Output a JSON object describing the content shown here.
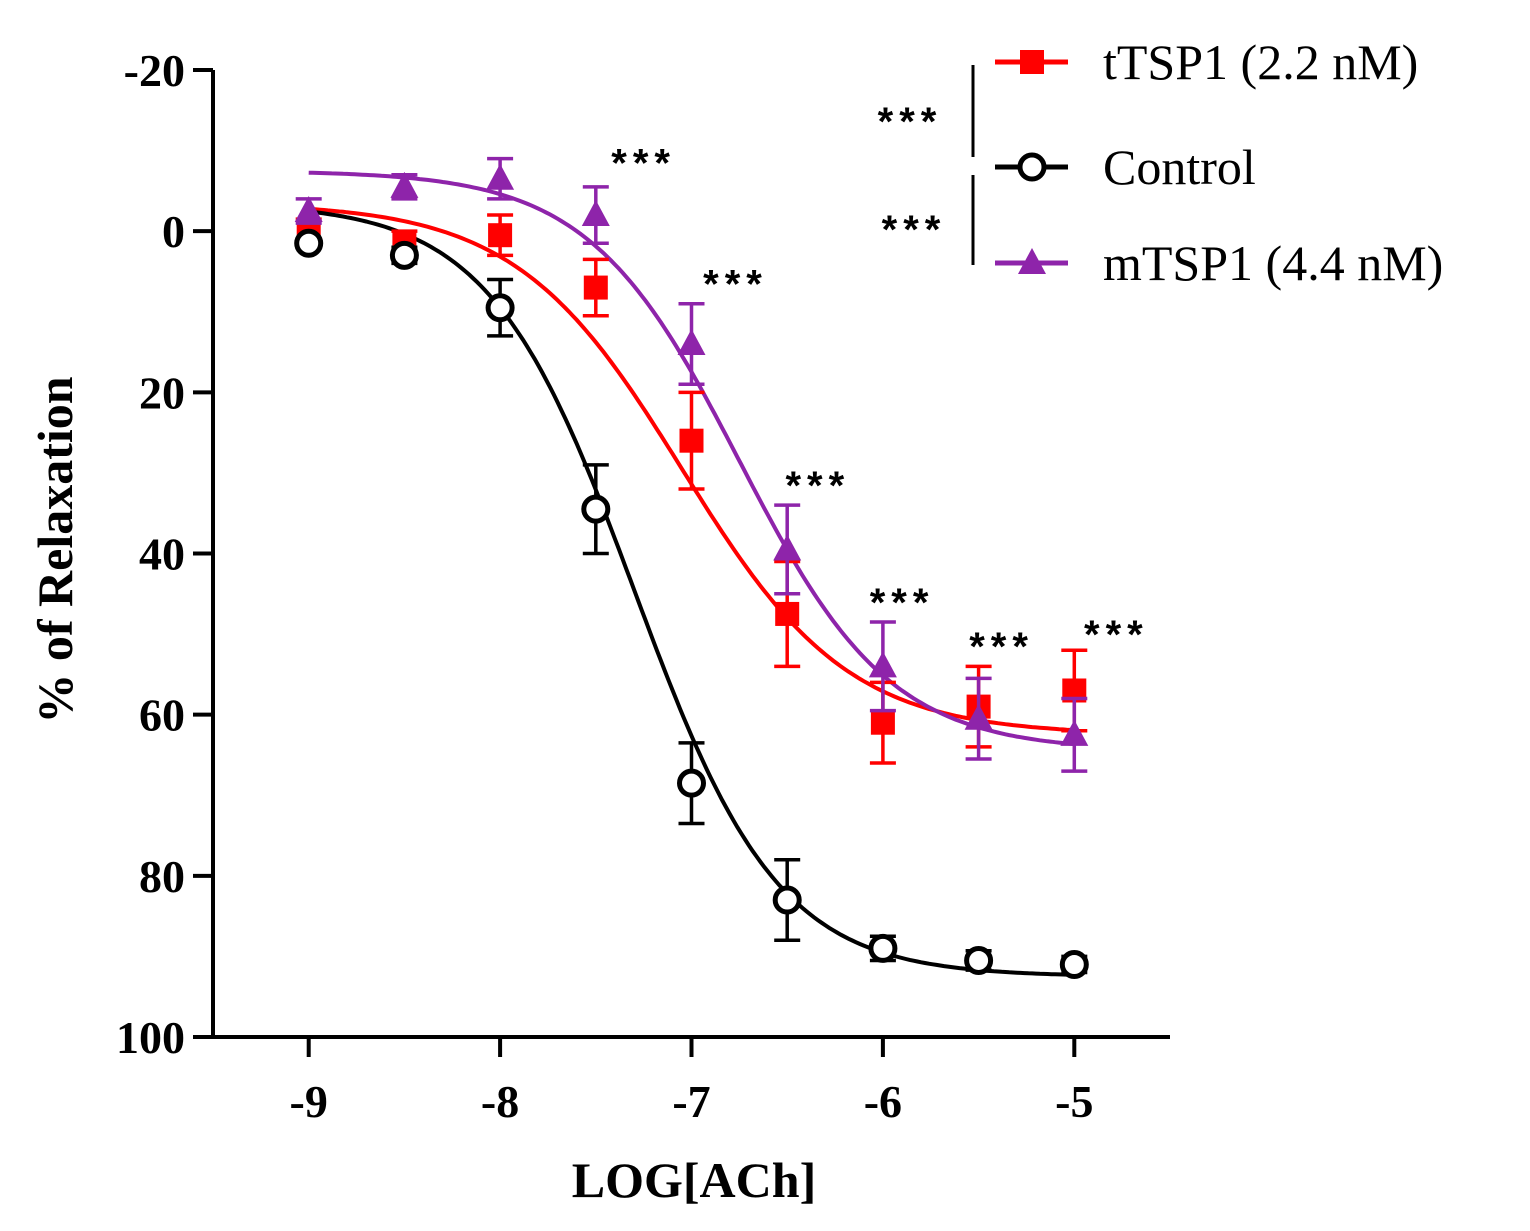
{
  "chart_data": {
    "type": "line",
    "title": "",
    "xlabel": "LOG[ACh]",
    "ylabel": "% of Relaxation",
    "xlim": [
      -9.5,
      -4.5
    ],
    "ylim": [
      100,
      -20
    ],
    "y_inverted": true,
    "x_ticks": [
      -9,
      -8,
      -7,
      -6,
      -5
    ],
    "x_tick_labels": [
      "-9",
      "-8",
      "-7",
      "-6",
      "-5"
    ],
    "y_ticks": [
      -20,
      0,
      20,
      40,
      60,
      80,
      100
    ],
    "y_tick_labels": [
      "-20",
      "0",
      "20",
      "40",
      "60",
      "80",
      "100"
    ],
    "grid": false,
    "legend_position": "top-right",
    "series": [
      {
        "name": "tTSP1 (2.2 nM)",
        "color": "#ff0000",
        "marker": "filled-square",
        "x": [
          -9,
          -8.5,
          -8,
          -7.5,
          -7,
          -6.5,
          -6,
          -5.5,
          -5
        ],
        "y": [
          0,
          1.5,
          0.5,
          7,
          26,
          47.5,
          61,
          59,
          57
        ],
        "err": [
          1.5,
          1.5,
          2.5,
          3.5,
          6,
          6.5,
          5,
          5,
          5
        ],
        "fit": {
          "top": -3.5,
          "bottom": 62.5,
          "logEC50": -7.05,
          "hill": 1.0
        }
      },
      {
        "name": "Control",
        "color": "#000000",
        "marker": "open-circle",
        "x": [
          -9,
          -8.5,
          -8,
          -7.5,
          -7,
          -6.5,
          -6,
          -5.5,
          -5
        ],
        "y": [
          1.5,
          3,
          9.5,
          34.5,
          68.5,
          83,
          89,
          90.5,
          91
        ],
        "err": [
          0.8,
          1,
          3.5,
          5.5,
          5,
          5,
          1.5,
          1.2,
          1
        ],
        "fit": {
          "top": -3.5,
          "bottom": 92.5,
          "logEC50": -7.3,
          "hill": 1.15
        }
      },
      {
        "name": "mTSP1 (4.4 nM)",
        "color": "#8e24aa",
        "marker": "filled-triangle",
        "x": [
          -9,
          -8.5,
          -8,
          -7.5,
          -7,
          -6.5,
          -6,
          -5.5,
          -5
        ],
        "y": [
          -2.5,
          -5.5,
          -6.5,
          -2,
          14,
          39.5,
          54,
          60.5,
          62.5
        ],
        "err": [
          1.5,
          1.5,
          2.5,
          3.5,
          5,
          5.5,
          5.5,
          5,
          4.5
        ],
        "fit": {
          "top": -7.5,
          "bottom": 64.5,
          "logEC50": -6.75,
          "hill": 1.1
        }
      }
    ],
    "annotations": [
      {
        "text": "***",
        "x": -7.25,
        "y": -8.5
      },
      {
        "text": "***",
        "x": -6.77,
        "y": 6.5
      },
      {
        "text": "***",
        "x": -6.34,
        "y": 31.5
      },
      {
        "text": "***",
        "x": -5.9,
        "y": 46
      },
      {
        "text": "***",
        "x": -5.38,
        "y": 51.5
      },
      {
        "text": "***",
        "x": -4.78,
        "y": 50
      }
    ],
    "legend_brackets": [
      {
        "text": "***",
        "between": [
          "tTSP1 (2.2 nM)",
          "Control"
        ]
      },
      {
        "text": "***",
        "between": [
          "Control",
          "mTSP1 (4.4 nM)"
        ]
      }
    ]
  }
}
